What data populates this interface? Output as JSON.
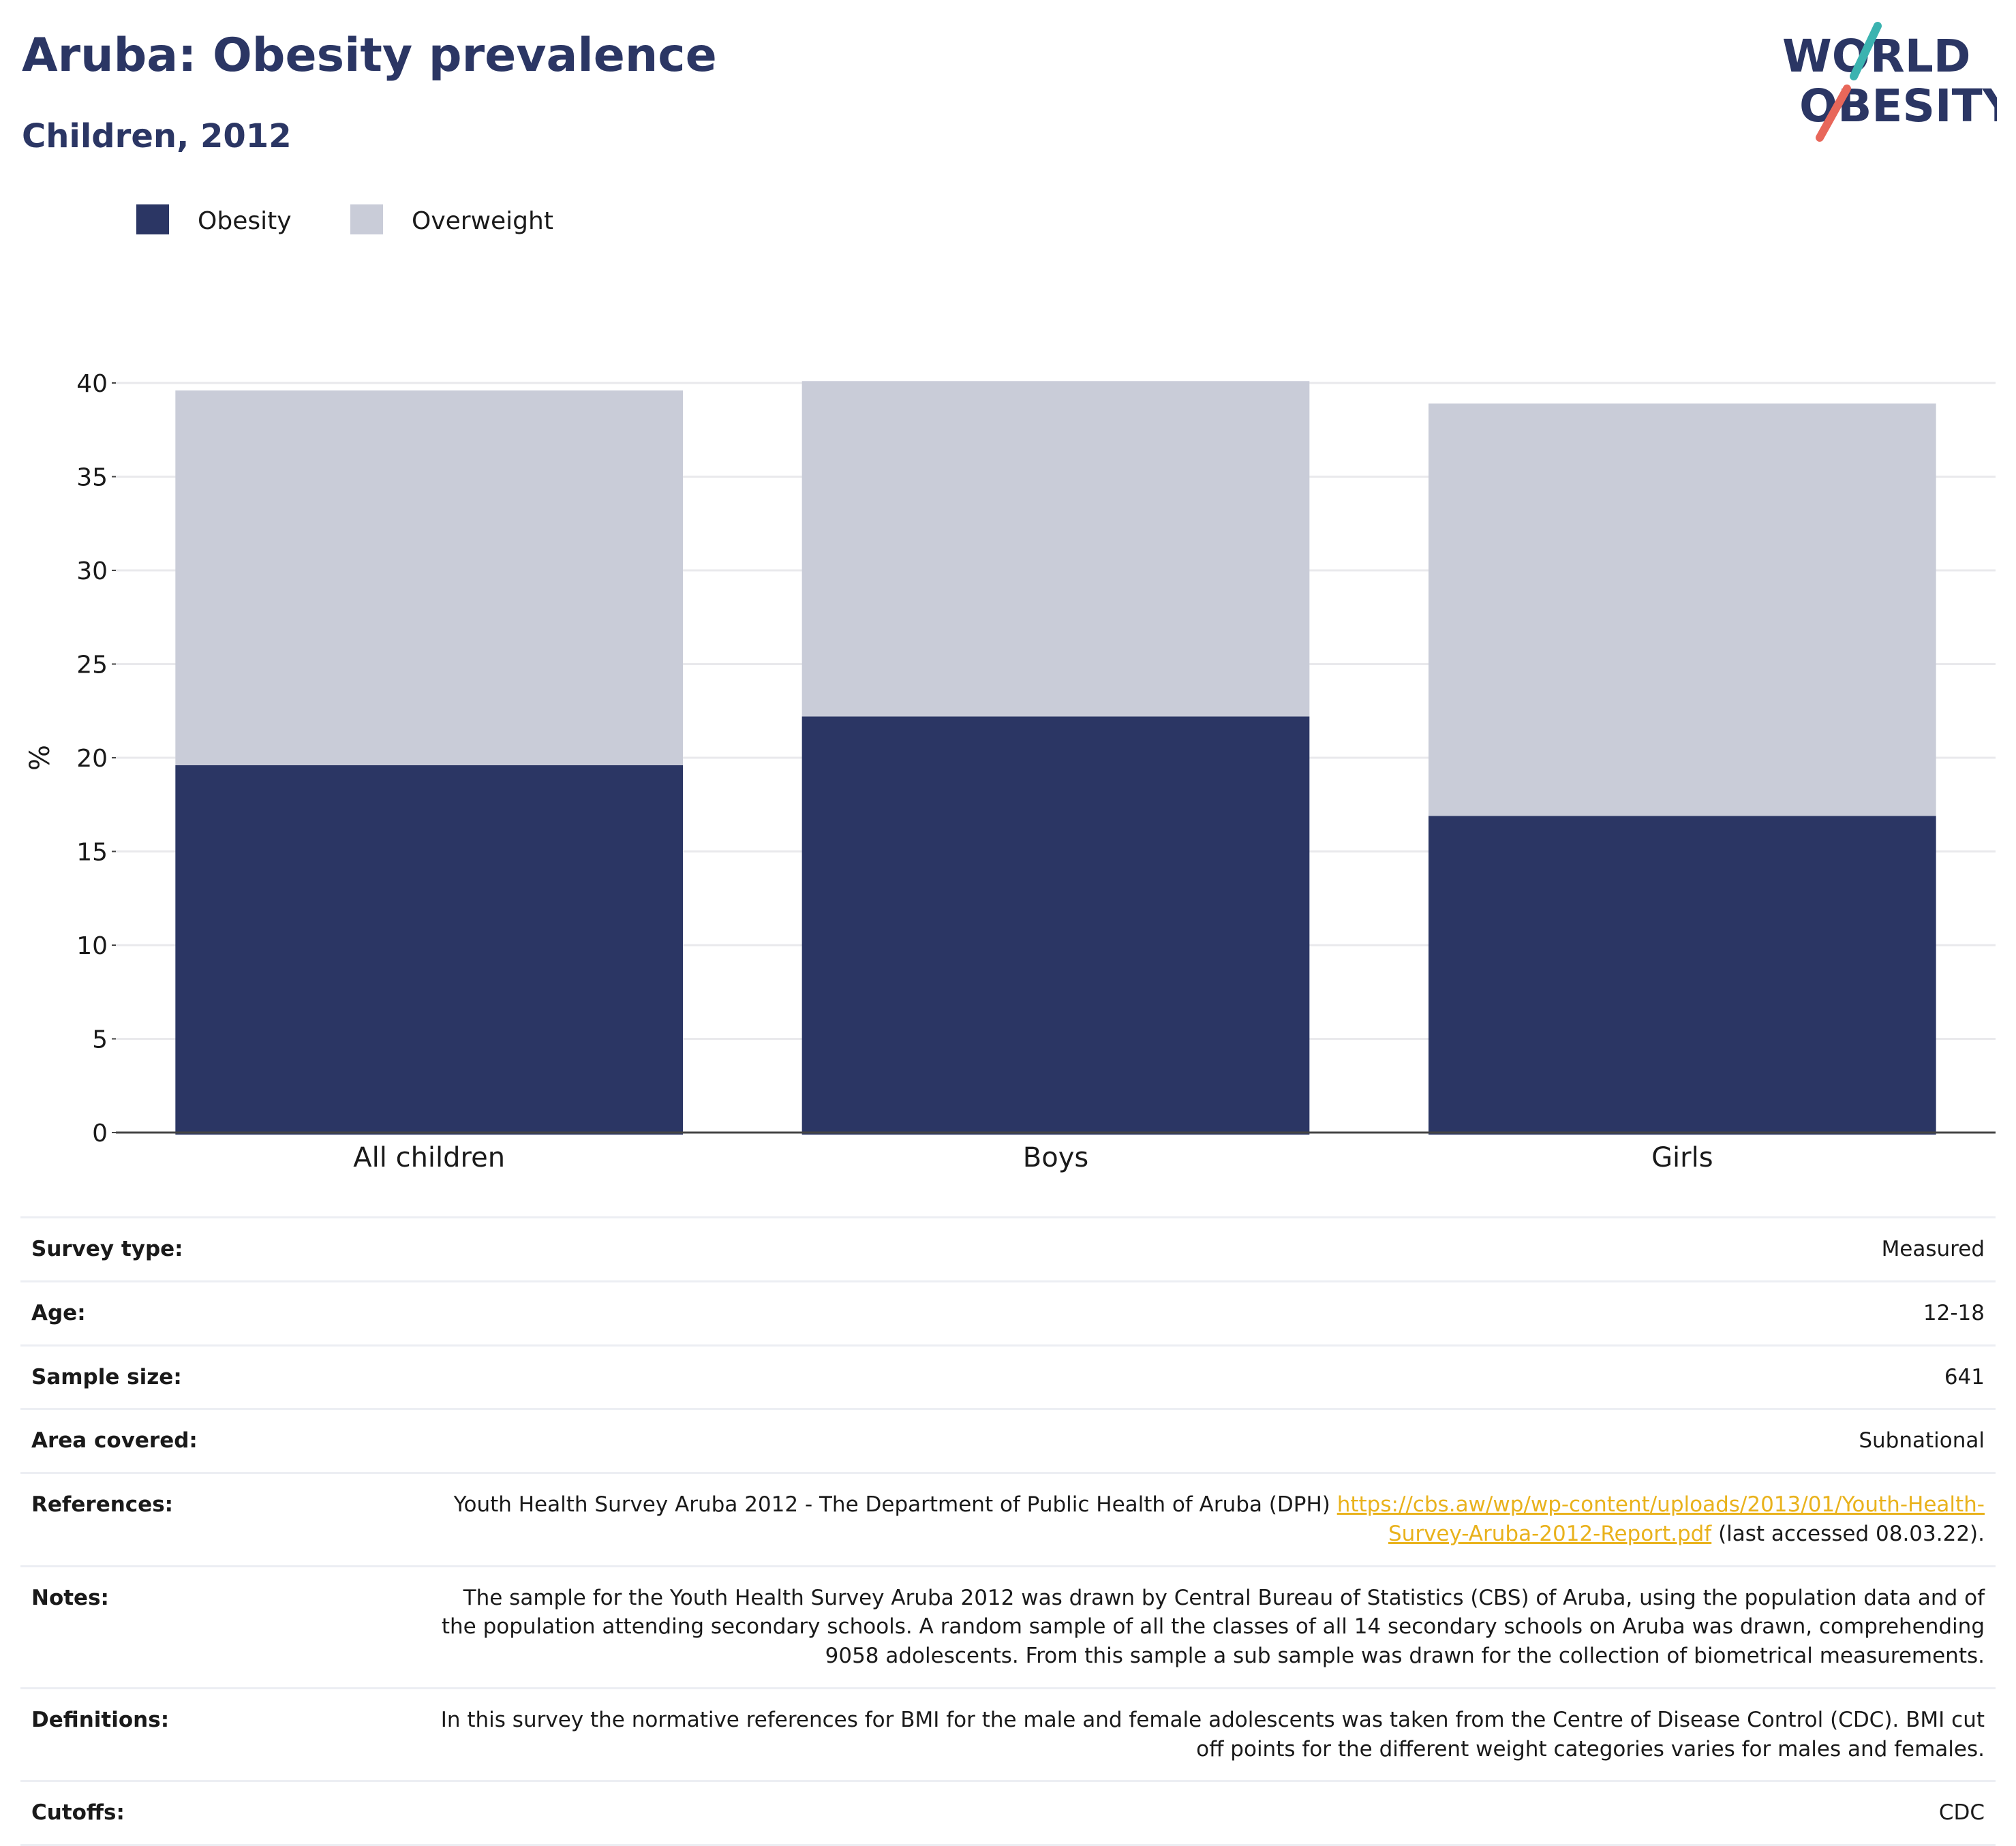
{
  "header": {
    "title": "Aruba: Obesity prevalence",
    "subtitle": "Children, 2012"
  },
  "logo": {
    "line1": "WORLD",
    "line2": "OBESITY",
    "colors": {
      "text": "#2b3664",
      "slash_top": "#3bb3b0",
      "slash_bottom": "#e8675a"
    }
  },
  "chart_data": {
    "type": "bar",
    "stacked": true,
    "categories": [
      "All children",
      "Boys",
      "Girls"
    ],
    "series": [
      {
        "name": "Obesity",
        "color": "#2b3664",
        "values": [
          19.6,
          22.2,
          16.9
        ]
      },
      {
        "name": "Overweight",
        "color": "#c9ccd8",
        "values": [
          20.0,
          17.9,
          22.0
        ]
      }
    ],
    "ylabel": "%",
    "ylim": [
      0,
      40
    ],
    "yticks": [
      0,
      5,
      10,
      15,
      20,
      25,
      30,
      35,
      40
    ],
    "grid": true,
    "legend_position": "top-left"
  },
  "info": {
    "rows": [
      {
        "key": "Survey type:",
        "value": "Measured"
      },
      {
        "key": "Age:",
        "value": "12-18"
      },
      {
        "key": "Sample size:",
        "value": "641"
      },
      {
        "key": "Area covered:",
        "value": "Subnational"
      },
      {
        "key": "References:",
        "value": "Youth Health Survey Aruba 2012 - The Department of Public Health of Aruba (DPH) ",
        "link": "https://cbs.aw/wp/wp-content/uploads/2013/01/Youth-Health-Survey-Aruba-2012-Report.pdf",
        "suffix": " (last accessed 08.03.22)."
      },
      {
        "key": "Notes:",
        "value": "The sample for the Youth Health Survey Aruba 2012 was drawn by Central Bureau of Statistics (CBS) of Aruba, using the population data and of the population attending secondary schools. A random sample of all the classes of all 14 secondary schools on Aruba was drawn, comprehending 9058 adolescents. From this sample a sub sample was drawn for the collection of biometrical measurements."
      },
      {
        "key": "Definitions:",
        "value": "In this survey the normative references for BMI for the male and female adolescents was taken from the Centre of Disease Control (CDC). BMI cut off points for the different weight categories varies for males and females."
      },
      {
        "key": "Cutoffs:",
        "value": "CDC"
      }
    ]
  }
}
